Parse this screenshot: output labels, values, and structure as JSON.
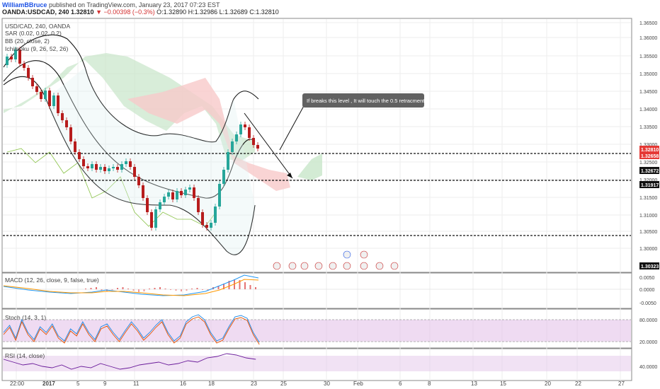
{
  "header": {
    "author": "WilliamBBruce",
    "published": "published on TradingView.com, January 23, 2017 07:23 EST",
    "symbol": "OANDA:USDCAD, 240",
    "last": "1.32810",
    "change": "−0.00398 (−0.3%)",
    "ohlc": "O:1.32890  H:1.32986  L:1.32689  C:1.32810"
  },
  "legends": {
    "symbol_interval": "USD/CAD, 240, OANDA",
    "sar": "SAR (0.02, 0.02, 0.2)",
    "bb": "BB (20, close, 2)",
    "ichimoku": "Ichimoku (9, 26, 52, 26)",
    "macd": "MACD (12, 26, close, 9, false, true)",
    "stoch": "Stoch (14, 3, 1)",
    "rsi": "RSI (14, close)"
  },
  "annotation": "If breaks this level , It will touch the 0.5 retracment.",
  "price_axis": {
    "ticks": [
      "1.36500",
      "1.36000",
      "1.35500",
      "1.35000",
      "1.34500",
      "1.34000",
      "1.33500",
      "1.33000",
      "1.32500",
      "1.32000",
      "1.31500",
      "1.31000",
      "1.30500",
      "1.30000"
    ],
    "badges": [
      {
        "label": "1.32810",
        "color": "#e53935"
      },
      {
        "label": "1.32658",
        "color": "#e53935"
      },
      {
        "label": "1.32672",
        "color": "#111111"
      },
      {
        "label": "1.31917",
        "color": "#111111"
      },
      {
        "label": "1.30323",
        "color": "#111111"
      }
    ]
  },
  "macd_axis": [
    "0.0050",
    "0.0000",
    "-0.0050"
  ],
  "stoch_axis": [
    "80.0000",
    "20.0000"
  ],
  "rsi_axis": [
    "40.0000"
  ],
  "time_axis": [
    "22:00",
    "2017",
    "5",
    "9",
    "11",
    "16",
    "18",
    "23",
    "25",
    "30",
    "Feb",
    "6",
    "8",
    "13",
    "15",
    "20",
    "22",
    "27"
  ],
  "colors": {
    "up": "#26a69a",
    "down": "#b71c1c",
    "cloud_green": "#c8e6c9",
    "cloud_red": "#f8c9c9",
    "stoch_band": "#e1bee7",
    "accent": "#1e53e5"
  }
}
